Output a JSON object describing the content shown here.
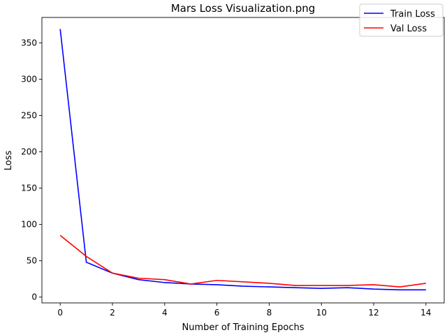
{
  "chart_data": {
    "type": "line",
    "title": "Mars Loss Visualization.png",
    "xlabel": "Number of Training Epochs",
    "ylabel": "Loss",
    "xlim": [
      -0.7,
      14.7
    ],
    "ylim": [
      -8,
      385
    ],
    "xticks": [
      0,
      2,
      4,
      6,
      8,
      10,
      12,
      14
    ],
    "yticks": [
      0,
      50,
      100,
      150,
      200,
      250,
      300,
      350
    ],
    "grid": false,
    "legend": "top-right",
    "x": [
      0,
      1,
      2,
      3,
      4,
      5,
      6,
      7,
      8,
      9,
      10,
      11,
      12,
      13,
      14
    ],
    "series": [
      {
        "name": "Train Loss",
        "color": "#0000ff",
        "values": [
          369,
          48,
          33,
          24,
          20,
          18,
          17,
          15,
          14,
          13,
          12,
          13,
          11,
          10,
          10
        ]
      },
      {
        "name": "Val Loss",
        "color": "#ff0000",
        "values": [
          85,
          56,
          33,
          26,
          24,
          18,
          23,
          21,
          19,
          16,
          16,
          16,
          17,
          14,
          19
        ]
      }
    ]
  }
}
